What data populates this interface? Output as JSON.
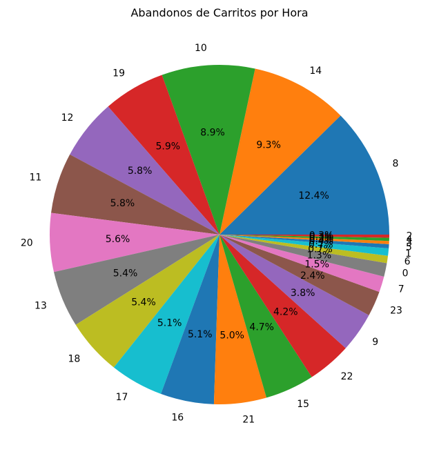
{
  "chart_data": {
    "type": "pie",
    "title": "Abandonos de Carritos por Hora",
    "start_angle_deg": 0,
    "direction": "counterclockwise",
    "slices": [
      {
        "label": "8",
        "value": 12.4,
        "pct_label": "12.4%",
        "color": "#1f77b4"
      },
      {
        "label": "14",
        "value": 9.3,
        "pct_label": "9.3%",
        "color": "#ff7f0e"
      },
      {
        "label": "10",
        "value": 8.9,
        "pct_label": "8.9%",
        "color": "#2ca02c"
      },
      {
        "label": "19",
        "value": 5.9,
        "pct_label": "5.9%",
        "color": "#d62728"
      },
      {
        "label": "12",
        "value": 5.8,
        "pct_label": "5.8%",
        "color": "#9467bd"
      },
      {
        "label": "11",
        "value": 5.8,
        "pct_label": "5.8%",
        "color": "#8c564b"
      },
      {
        "label": "20",
        "value": 5.6,
        "pct_label": "5.6%",
        "color": "#e377c2"
      },
      {
        "label": "13",
        "value": 5.4,
        "pct_label": "5.4%",
        "color": "#7f7f7f"
      },
      {
        "label": "18",
        "value": 5.4,
        "pct_label": "5.4%",
        "color": "#bcbd22"
      },
      {
        "label": "17",
        "value": 5.1,
        "pct_label": "5.1%",
        "color": "#17becf"
      },
      {
        "label": "16",
        "value": 5.1,
        "pct_label": "5.1%",
        "color": "#1f77b4"
      },
      {
        "label": "21",
        "value": 5.0,
        "pct_label": "5.0%",
        "color": "#ff7f0e"
      },
      {
        "label": "15",
        "value": 4.7,
        "pct_label": "4.7%",
        "color": "#2ca02c"
      },
      {
        "label": "22",
        "value": 4.2,
        "pct_label": "4.2%",
        "color": "#d62728"
      },
      {
        "label": "9",
        "value": 3.8,
        "pct_label": "3.8%",
        "color": "#9467bd"
      },
      {
        "label": "23",
        "value": 2.4,
        "pct_label": "2.4%",
        "color": "#8c564b"
      },
      {
        "label": "7",
        "value": 1.5,
        "pct_label": "1.5%",
        "color": "#e377c2"
      },
      {
        "label": "0",
        "value": 1.3,
        "pct_label": "1.3%",
        "color": "#7f7f7f"
      },
      {
        "label": "6",
        "value": 0.7,
        "pct_label": "0.7%",
        "color": "#bcbd22"
      },
      {
        "label": "1",
        "value": 0.7,
        "pct_label": "0.7%",
        "color": "#17becf"
      },
      {
        "label": "5",
        "value": 0.4,
        "pct_label": "0.4%",
        "color": "#1f77b4"
      },
      {
        "label": "3",
        "value": 0.3,
        "pct_label": "0.3%",
        "color": "#ff7f0e"
      },
      {
        "label": "4",
        "value": 0.3,
        "pct_label": "0.3%",
        "color": "#2ca02c"
      },
      {
        "label": "2",
        "value": 0.3,
        "pct_label": "0.3%",
        "color": "#d62728"
      }
    ]
  }
}
